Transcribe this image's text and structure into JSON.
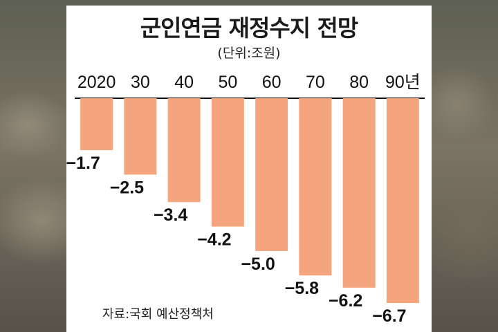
{
  "chart_data": {
    "type": "bar",
    "title": "군인연금 재정수지 전망",
    "unit": "(단위:조원)",
    "categories": [
      "2020",
      "30",
      "40",
      "50",
      "60",
      "70",
      "80",
      "90년"
    ],
    "values": [
      -1.7,
      -2.5,
      -3.4,
      -4.2,
      -5.0,
      -5.8,
      -6.2,
      -6.7
    ],
    "value_labels": [
      "−1.7",
      "−2.5",
      "−3.4",
      "−4.2",
      "−5.0",
      "−5.8",
      "−6.2",
      "−6.7"
    ],
    "ylim": [
      -6.7,
      0
    ],
    "bar_color": "#f5a57e",
    "source": "자료:국회 예산정책처"
  }
}
